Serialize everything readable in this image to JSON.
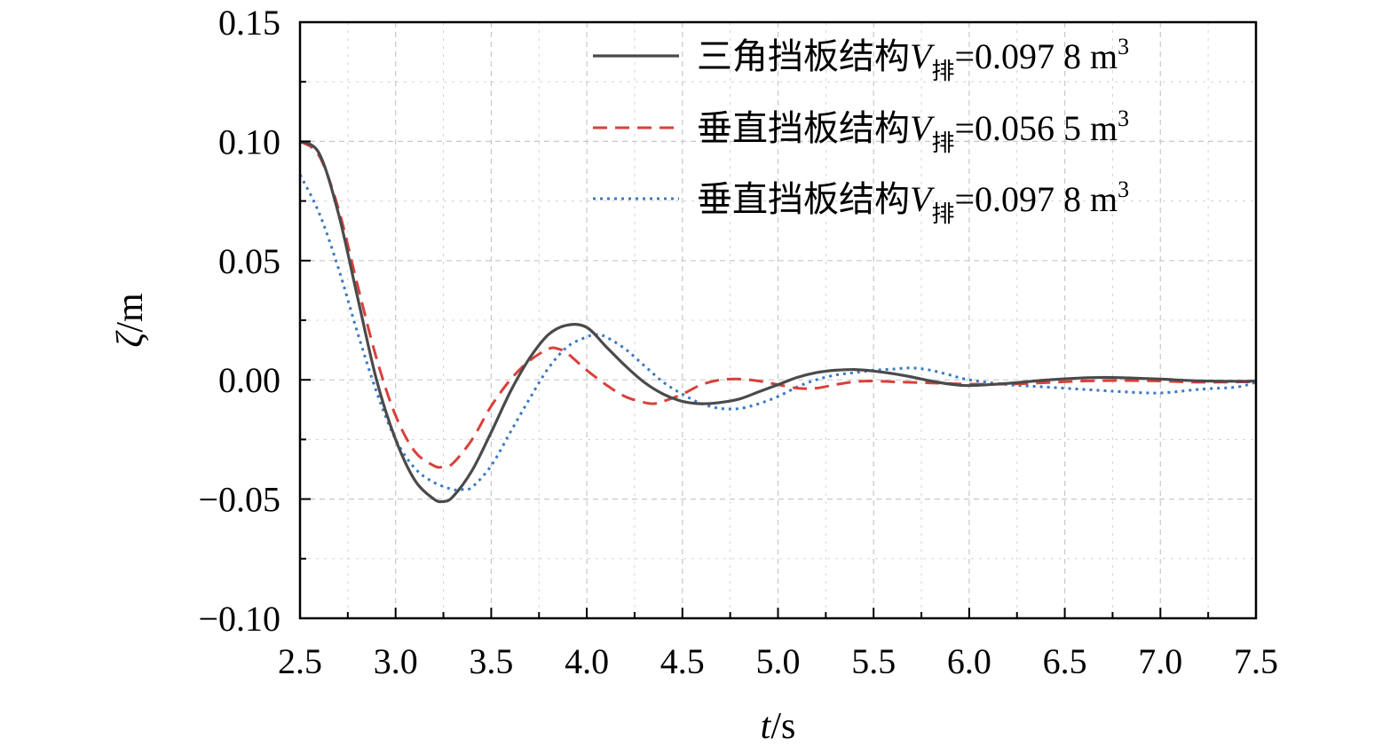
{
  "chart_data": {
    "type": "line",
    "xlabel": {
      "var": "t",
      "unit": "/s"
    },
    "ylabel": {
      "var": "ζ",
      "unit": "/m"
    },
    "xlim": [
      2.5,
      7.5
    ],
    "ylim": [
      -0.1,
      0.15
    ],
    "xticks": [
      "2.5",
      "3.0",
      "3.5",
      "4.0",
      "4.5",
      "5.0",
      "5.5",
      "6.0",
      "6.5",
      "7.0",
      "7.5"
    ],
    "yticks": [
      "0.15",
      "0.10",
      "0.05",
      "0.00",
      "−0.05",
      "−0.10"
    ],
    "grid": true,
    "legend_position": "top-right",
    "series": [
      {
        "name": "三角挡板结构V排=0.097 8 m3",
        "legend": {
          "prefix": "三角挡板结构",
          "var": "V",
          "sub": "排",
          "value": "=0.097 8 m",
          "sup": "3"
        },
        "style": "solid",
        "color": "#4a4a4a",
        "x": [
          2.5,
          2.6,
          2.7,
          2.8,
          2.9,
          3.0,
          3.1,
          3.2,
          3.25,
          3.3,
          3.4,
          3.5,
          3.6,
          3.7,
          3.8,
          3.9,
          4.0,
          4.1,
          4.2,
          4.3,
          4.4,
          4.5,
          4.6,
          4.7,
          4.8,
          4.9,
          5.0,
          5.1,
          5.2,
          5.3,
          5.4,
          5.5,
          5.6,
          5.7,
          5.8,
          5.9,
          6.0,
          6.2,
          6.4,
          6.6,
          6.7,
          6.8,
          7.0,
          7.2,
          7.4,
          7.5
        ],
        "y": [
          0.1,
          0.095,
          0.07,
          0.035,
          0.0,
          -0.025,
          -0.042,
          -0.05,
          -0.051,
          -0.049,
          -0.038,
          -0.022,
          -0.005,
          0.009,
          0.019,
          0.023,
          0.022,
          0.014,
          0.006,
          -0.001,
          -0.006,
          -0.009,
          -0.01,
          -0.0095,
          -0.008,
          -0.005,
          -0.002,
          0.001,
          0.003,
          0.004,
          0.0043,
          0.0037,
          0.0026,
          0.0012,
          -0.0005,
          -0.0018,
          -0.0024,
          -0.0015,
          -0.0001,
          0.0008,
          0.001,
          0.0009,
          0.0003,
          -0.0004,
          -0.0006,
          -0.0005
        ]
      },
      {
        "name": "垂直挡板结构V排=0.056 5 m3",
        "legend": {
          "prefix": "垂直挡板结构",
          "var": "V",
          "sub": "排",
          "value": "=0.056 5 m",
          "sup": "3"
        },
        "style": "dashed",
        "color": "#d9403a",
        "x": [
          2.5,
          2.6,
          2.7,
          2.8,
          2.9,
          3.0,
          3.1,
          3.2,
          3.25,
          3.3,
          3.4,
          3.5,
          3.6,
          3.7,
          3.8,
          3.85,
          3.9,
          4.0,
          4.1,
          4.2,
          4.3,
          4.35,
          4.4,
          4.5,
          4.6,
          4.7,
          4.8,
          4.9,
          5.0,
          5.1,
          5.2,
          5.3,
          5.4,
          5.5,
          5.6,
          5.8,
          6.0,
          6.2,
          6.4,
          6.6,
          6.8,
          7.0,
          7.2,
          7.5
        ],
        "y": [
          0.1,
          0.094,
          0.072,
          0.04,
          0.009,
          -0.015,
          -0.03,
          -0.036,
          -0.0365,
          -0.035,
          -0.025,
          -0.011,
          0.0,
          0.008,
          0.013,
          0.013,
          0.011,
          0.004,
          -0.002,
          -0.007,
          -0.0095,
          -0.01,
          -0.009,
          -0.006,
          -0.002,
          0.0,
          0.0003,
          -0.0005,
          -0.002,
          -0.0035,
          -0.0035,
          -0.002,
          -0.0008,
          -0.0005,
          -0.0008,
          -0.0013,
          -0.0018,
          -0.0018,
          -0.0012,
          -0.0005,
          -0.0003,
          -0.0005,
          -0.001,
          -0.0008
        ]
      },
      {
        "name": "垂直挡板结构V排=0.097 8 m3",
        "legend": {
          "prefix": "垂直挡板结构",
          "var": "V",
          "sub": "排",
          "value": "=0.097 8 m",
          "sup": "3"
        },
        "style": "dotted",
        "color": "#3a78c2",
        "x": [
          2.5,
          2.6,
          2.7,
          2.8,
          2.9,
          3.0,
          3.1,
          3.2,
          3.3,
          3.35,
          3.4,
          3.5,
          3.6,
          3.7,
          3.8,
          3.9,
          4.0,
          4.05,
          4.1,
          4.2,
          4.3,
          4.4,
          4.5,
          4.6,
          4.7,
          4.8,
          4.9,
          5.0,
          5.1,
          5.2,
          5.3,
          5.4,
          5.5,
          5.6,
          5.7,
          5.8,
          5.9,
          6.0,
          6.2,
          6.4,
          6.6,
          6.8,
          7.0,
          7.2,
          7.4,
          7.5
        ],
        "y": [
          0.086,
          0.07,
          0.047,
          0.02,
          -0.005,
          -0.025,
          -0.037,
          -0.043,
          -0.046,
          -0.046,
          -0.045,
          -0.036,
          -0.022,
          -0.008,
          0.005,
          0.014,
          0.018,
          0.019,
          0.018,
          0.013,
          0.006,
          -0.001,
          -0.006,
          -0.01,
          -0.012,
          -0.012,
          -0.01,
          -0.007,
          -0.003,
          0.0,
          0.002,
          0.003,
          0.004,
          0.0045,
          0.005,
          0.004,
          0.002,
          0.0,
          -0.002,
          -0.003,
          -0.004,
          -0.005,
          -0.0055,
          -0.004,
          -0.003,
          -0.001
        ]
      }
    ]
  }
}
